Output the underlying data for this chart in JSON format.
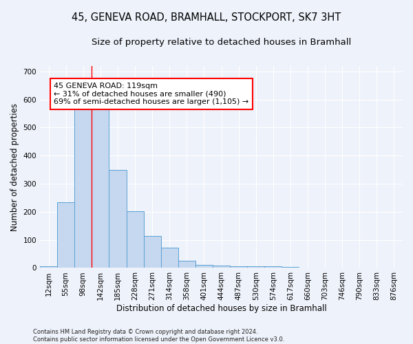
{
  "title_line1": "45, GENEVA ROAD, BRAMHALL, STOCKPORT, SK7 3HT",
  "title_line2": "Size of property relative to detached houses in Bramhall",
  "xlabel": "Distribution of detached houses by size in Bramhall",
  "ylabel": "Number of detached properties",
  "footer_line1": "Contains HM Land Registry data © Crown copyright and database right 2024.",
  "footer_line2": "Contains public sector information licensed under the Open Government Licence v3.0.",
  "bin_labels": [
    "12sqm",
    "55sqm",
    "98sqm",
    "142sqm",
    "185sqm",
    "228sqm",
    "271sqm",
    "314sqm",
    "358sqm",
    "401sqm",
    "444sqm",
    "487sqm",
    "530sqm",
    "574sqm",
    "617sqm",
    "660sqm",
    "703sqm",
    "746sqm",
    "790sqm",
    "833sqm",
    "876sqm"
  ],
  "bar_values": [
    5,
    235,
    585,
    585,
    350,
    203,
    115,
    73,
    25,
    12,
    8,
    6,
    5,
    5,
    3,
    0,
    0,
    0,
    0,
    0,
    0
  ],
  "bar_color": "#c5d8f0",
  "bar_edgecolor": "#5a9fd4",
  "property_line_x": 2.5,
  "annotation_text": "45 GENEVA ROAD: 119sqm\n← 31% of detached houses are smaller (490)\n69% of semi-detached houses are larger (1,105) →",
  "annotation_box_color": "white",
  "annotation_box_edgecolor": "red",
  "red_line_color": "red",
  "ylim": [
    0,
    720
  ],
  "yticks": [
    0,
    100,
    200,
    300,
    400,
    500,
    600,
    700
  ],
  "background_color": "#eef2fa",
  "grid_color": "white",
  "title_fontsize": 10.5,
  "subtitle_fontsize": 9.5,
  "axis_label_fontsize": 8.5,
  "tick_fontsize": 7.5,
  "footer_fontsize": 6.0,
  "annotation_fontsize": 8.0
}
